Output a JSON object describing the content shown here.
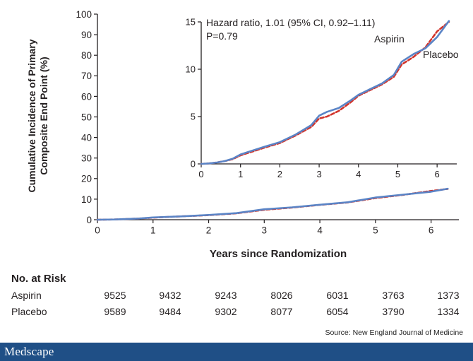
{
  "chart_data": [
    {
      "type": "line",
      "ylabel_lines": [
        "Cumulative Incidence of Primary",
        "Composite End Point (%)"
      ],
      "xlabel": "Years since Randomization",
      "xlim": [
        0,
        6.5
      ],
      "ylim": [
        0,
        100
      ],
      "xticks": [
        0,
        1,
        2,
        3,
        4,
        5,
        6
      ],
      "yticks": [
        0,
        10,
        20,
        30,
        40,
        50,
        60,
        70,
        80,
        90,
        100
      ],
      "grid": false,
      "series": [
        {
          "name": "Aspirin",
          "color": "#d2342b",
          "dash": true,
          "x": [
            0,
            0.3,
            0.5,
            0.75,
            1.0,
            1.5,
            2.0,
            2.5,
            3.0,
            3.5,
            4.0,
            4.5,
            5.0,
            5.5,
            6.0,
            6.3
          ],
          "y": [
            0,
            0.1,
            0.3,
            0.6,
            1.0,
            1.6,
            2.2,
            3.1,
            4.8,
            5.9,
            7.2,
            8.4,
            10.5,
            12.1,
            14.0,
            15.0
          ]
        },
        {
          "name": "Placebo",
          "color": "#5a84c6",
          "dash": false,
          "x": [
            0,
            0.3,
            0.5,
            0.75,
            1.0,
            1.5,
            2.0,
            2.5,
            3.0,
            3.5,
            4.0,
            4.5,
            5.0,
            5.5,
            6.0,
            6.3
          ],
          "y": [
            0,
            0.1,
            0.3,
            0.6,
            1.1,
            1.6,
            2.3,
            3.2,
            5.1,
            6.0,
            7.3,
            8.5,
            10.8,
            12.2,
            13.6,
            15.1
          ]
        }
      ]
    },
    {
      "type": "line",
      "xlim": [
        0,
        6.5
      ],
      "ylim": [
        0,
        15
      ],
      "xticks": [
        0,
        1,
        2,
        3,
        4,
        5,
        6
      ],
      "yticks": [
        0,
        5,
        10,
        15
      ],
      "annotation_lines": [
        "Hazard ratio, 1.01 (95% CI, 0.92–1.11)",
        "P=0.79"
      ],
      "series_labels": [
        "Aspirin",
        "Placebo"
      ],
      "series": [
        {
          "name": "Aspirin",
          "color": "#d2342b",
          "dash": true,
          "x": [
            0,
            0.2,
            0.4,
            0.6,
            0.8,
            1.0,
            1.3,
            1.6,
            2.0,
            2.4,
            2.8,
            3.0,
            3.2,
            3.5,
            3.8,
            4.0,
            4.3,
            4.6,
            4.9,
            5.1,
            5.4,
            5.7,
            6.0,
            6.3
          ],
          "y": [
            0,
            0.05,
            0.15,
            0.3,
            0.5,
            0.9,
            1.3,
            1.7,
            2.2,
            3.0,
            3.9,
            4.8,
            5.0,
            5.6,
            6.5,
            7.2,
            7.8,
            8.4,
            9.2,
            10.5,
            11.3,
            12.3,
            14.0,
            15.0
          ]
        },
        {
          "name": "Placebo",
          "color": "#5a84c6",
          "dash": false,
          "x": [
            0,
            0.2,
            0.4,
            0.6,
            0.8,
            1.0,
            1.3,
            1.6,
            2.0,
            2.4,
            2.8,
            3.0,
            3.2,
            3.5,
            3.8,
            4.0,
            4.3,
            4.6,
            4.9,
            5.1,
            5.4,
            5.7,
            6.0,
            6.3
          ],
          "y": [
            0,
            0.05,
            0.15,
            0.3,
            0.55,
            1.0,
            1.4,
            1.8,
            2.3,
            3.1,
            4.1,
            5.1,
            5.5,
            5.9,
            6.7,
            7.3,
            7.9,
            8.5,
            9.4,
            10.8,
            11.6,
            12.2,
            13.4,
            15.1
          ]
        }
      ]
    }
  ],
  "risk_table": {
    "heading": "No. at Risk",
    "rows": [
      {
        "label": "Aspirin",
        "values": [
          "9525",
          "9432",
          "9243",
          "8026",
          "6031",
          "3763",
          "1373"
        ]
      },
      {
        "label": "Placebo",
        "values": [
          "9589",
          "9484",
          "9302",
          "8077",
          "6054",
          "3790",
          "1334"
        ]
      }
    ]
  },
  "source": "Source: New England Journal of Medicine",
  "footer": {
    "logo_text": "Medscape",
    "bar_color": "#1f4f86"
  }
}
